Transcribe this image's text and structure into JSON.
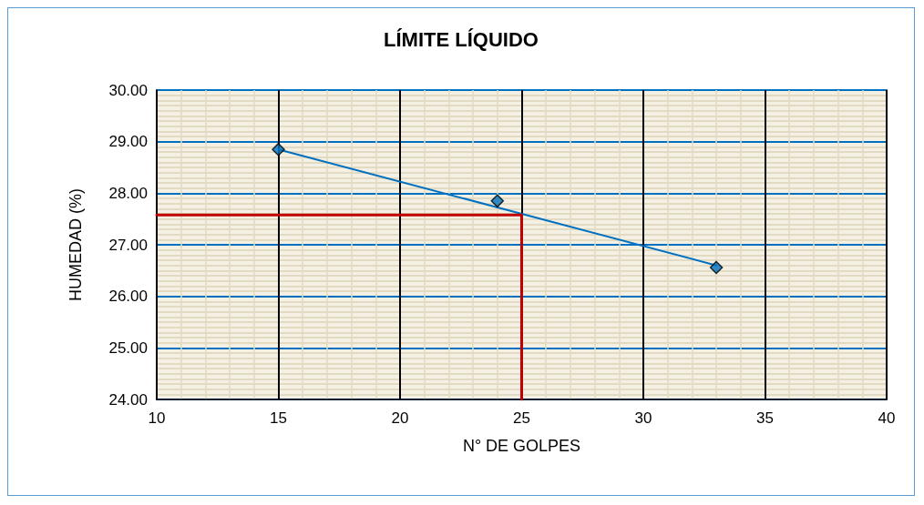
{
  "chart_data": {
    "type": "scatter",
    "title": "LÍMITE LÍQUIDO",
    "xlabel": "N° DE GOLPES",
    "ylabel": "HUMEDAD (%)",
    "xlim": [
      10,
      40
    ],
    "xticks": [
      10,
      15,
      20,
      25,
      30,
      35,
      40
    ],
    "ylim": [
      24,
      30
    ],
    "yticks": [
      {
        "value": 24,
        "label": "24.00"
      },
      {
        "value": 25,
        "label": "25.00"
      },
      {
        "value": 26,
        "label": "26.00"
      },
      {
        "value": 27,
        "label": "27.00"
      },
      {
        "value": 28,
        "label": "28.00"
      },
      {
        "value": 29,
        "label": "29.00"
      },
      {
        "value": 30,
        "label": "30.00"
      }
    ],
    "grid": true,
    "series": [
      {
        "type": "line",
        "color": "#0070c0",
        "x": [
          15,
          33
        ],
        "values": [
          28.85,
          26.6
        ],
        "marker": "none",
        "line_style": "solid"
      },
      {
        "type": "line",
        "color": "#c00000",
        "x": [
          10,
          25,
          25
        ],
        "values": [
          27.58,
          27.58,
          24
        ],
        "marker": "none",
        "line_style": "solid"
      },
      {
        "color": "#0070c0",
        "x": [
          15,
          24,
          33
        ],
        "values": [
          28.85,
          27.85,
          26.56
        ],
        "marker": "diamond"
      }
    ]
  }
}
